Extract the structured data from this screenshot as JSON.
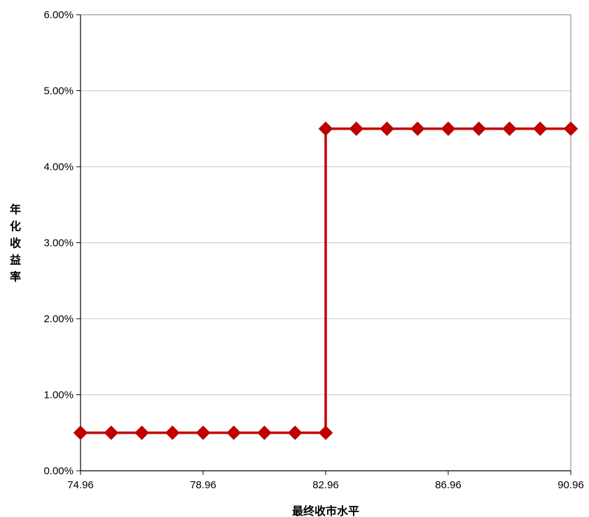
{
  "chart_data": {
    "type": "line",
    "xlabel": "最终收市水平",
    "ylabel": "年化收益率",
    "x_tick_labels": [
      "74.96",
      "78.96",
      "82.96",
      "86.96",
      "90.96"
    ],
    "y_tick_labels": [
      "0.00%",
      "1.00%",
      "2.00%",
      "3.00%",
      "4.00%",
      "5.00%",
      "6.00%"
    ],
    "xlim": [
      74.96,
      90.96
    ],
    "ylim": [
      0,
      6
    ],
    "y_unit": "%",
    "grid": "horizontal",
    "series": [
      {
        "color": "#c00000",
        "marker": "diamond",
        "x": [
          74.96,
          75.96,
          76.96,
          77.96,
          78.96,
          79.96,
          80.96,
          81.96,
          82.96,
          82.96,
          83.96,
          84.96,
          85.96,
          86.96,
          87.96,
          88.96,
          89.96,
          90.96
        ],
        "y": [
          0.5,
          0.5,
          0.5,
          0.5,
          0.5,
          0.5,
          0.5,
          0.5,
          0.5,
          4.5,
          4.5,
          4.5,
          4.5,
          4.5,
          4.5,
          4.5,
          4.5,
          4.5
        ]
      }
    ]
  }
}
